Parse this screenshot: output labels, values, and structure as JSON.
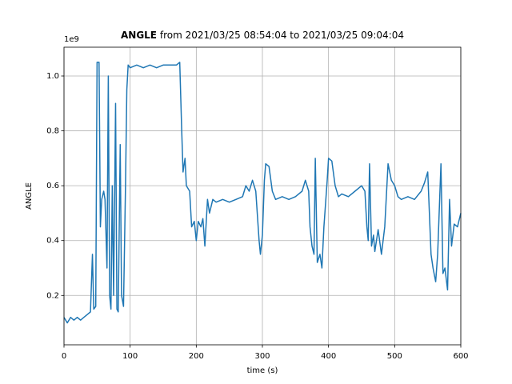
{
  "chart_data": {
    "type": "line",
    "title_bold": "ANGLE",
    "title": "from 2021/03/25 08:54:04 to 2021/03/25 09:04:04",
    "y_offset_label": "1e9",
    "x_label": "time (s)",
    "y_label": "ANGLE",
    "color": "#1f77b4",
    "grid": true,
    "xlim": [
      0,
      600
    ],
    "xticks": [
      0,
      100,
      200,
      300,
      400,
      500,
      600
    ],
    "ylim": [
      0.02,
      1.105
    ],
    "yticks": [
      0.2,
      0.4,
      0.6,
      0.8,
      {
        "value": 1,
        "label": "1.0"
      }
    ],
    "x": [
      0,
      5,
      10,
      15,
      20,
      25,
      30,
      35,
      40,
      43,
      45,
      48,
      50,
      53,
      55,
      57,
      60,
      62,
      65,
      67,
      69,
      71,
      73,
      75,
      78,
      80,
      82,
      85,
      87,
      90,
      93,
      95,
      97,
      100,
      110,
      120,
      130,
      140,
      150,
      160,
      170,
      175,
      178,
      180,
      183,
      185,
      190,
      193,
      197,
      200,
      203,
      207,
      210,
      213,
      217,
      220,
      225,
      230,
      240,
      250,
      260,
      270,
      275,
      280,
      285,
      290,
      295,
      297,
      300,
      303,
      305,
      310,
      315,
      320,
      330,
      340,
      350,
      360,
      365,
      370,
      372,
      375,
      378,
      380,
      383,
      387,
      390,
      393,
      398,
      400,
      405,
      410,
      415,
      420,
      430,
      440,
      450,
      455,
      458,
      460,
      462,
      465,
      468,
      470,
      475,
      480,
      485,
      490,
      495,
      500,
      505,
      510,
      520,
      530,
      540,
      545,
      550,
      555,
      558,
      562,
      565,
      570,
      573,
      576,
      580,
      583,
      586,
      590,
      595,
      600
    ],
    "values": [
      0.12,
      0.1,
      0.12,
      0.11,
      0.12,
      0.11,
      0.12,
      0.13,
      0.14,
      0.35,
      0.15,
      0.16,
      1.05,
      1.05,
      0.45,
      0.55,
      0.58,
      0.55,
      0.3,
      1.0,
      0.2,
      0.15,
      0.6,
      0.2,
      0.9,
      0.15,
      0.14,
      0.75,
      0.2,
      0.16,
      0.6,
      0.95,
      1.04,
      1.03,
      1.04,
      1.03,
      1.04,
      1.03,
      1.04,
      1.04,
      1.04,
      1.05,
      0.8,
      0.65,
      0.7,
      0.6,
      0.58,
      0.45,
      0.47,
      0.4,
      0.47,
      0.45,
      0.48,
      0.38,
      0.55,
      0.5,
      0.55,
      0.54,
      0.55,
      0.54,
      0.55,
      0.56,
      0.6,
      0.58,
      0.62,
      0.58,
      0.4,
      0.35,
      0.42,
      0.62,
      0.68,
      0.67,
      0.58,
      0.55,
      0.56,
      0.55,
      0.56,
      0.58,
      0.62,
      0.58,
      0.45,
      0.38,
      0.35,
      0.7,
      0.32,
      0.35,
      0.3,
      0.45,
      0.62,
      0.7,
      0.69,
      0.6,
      0.56,
      0.57,
      0.56,
      0.58,
      0.6,
      0.58,
      0.45,
      0.4,
      0.68,
      0.38,
      0.42,
      0.36,
      0.44,
      0.35,
      0.45,
      0.68,
      0.62,
      0.6,
      0.56,
      0.55,
      0.56,
      0.55,
      0.58,
      0.61,
      0.65,
      0.35,
      0.3,
      0.25,
      0.35,
      0.68,
      0.28,
      0.3,
      0.22,
      0.55,
      0.38,
      0.46,
      0.45,
      0.5
    ]
  }
}
